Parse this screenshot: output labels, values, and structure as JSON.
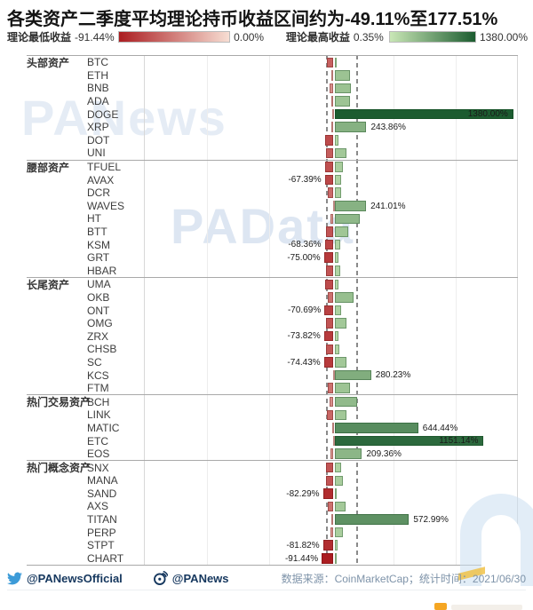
{
  "title": "各类资产二季度平均理论持币收益区间约为-49.11%至177.51%",
  "legend": {
    "min": {
      "label": "理论最低收益",
      "from": "-91.44%",
      "to": "0.00%"
    },
    "max": {
      "label": "理论最高收益",
      "from": "0.35%",
      "to": "1380.00%"
    }
  },
  "colors": {
    "red_dark": "#ab1d21",
    "red_light": "#f7ded3",
    "green_light": "#c9e7b6",
    "green_dark": "#1c5c30",
    "dash_gray": "#8a8a8a",
    "navy": "#15375e",
    "twitter_blue": "#3c9bd8",
    "source_gray": "#7e93a9"
  },
  "watermarks": {
    "wm1": "PANews",
    "wm2": "PAData"
  },
  "footer": {
    "twitter_handle": "@PANewsOfficial",
    "weibo_handle": "@PANews",
    "source": "数据来源：CoinMarketCap；统计时间：2021/06/30"
  },
  "chart_data": {
    "type": "bar",
    "orientation": "horizontal-diverging",
    "value_unit": "percent",
    "xlim": [
      -100,
      1400
    ],
    "grid": true,
    "avg_range_lines": {
      "min": -49.11,
      "max": 177.51
    },
    "legend_scale": {
      "red_min": -91.44,
      "red_max": 0.0,
      "green_min": 0.35,
      "green_max": 1380.0
    },
    "sections": [
      {
        "category": "头部资产",
        "assets": [
          {
            "name": "BTC",
            "min": -53,
            "max": 10
          },
          {
            "name": "ETH",
            "min": -15,
            "max": 120
          },
          {
            "name": "BNB",
            "min": -30,
            "max": 125
          },
          {
            "name": "ADA",
            "min": -20,
            "max": 115
          },
          {
            "name": "DOGE",
            "min": -10,
            "max": 1380.0,
            "max_label": "1380.00%",
            "label_inside": true
          },
          {
            "name": "XRP",
            "min": -15,
            "max": 243.86,
            "max_label": "243.86%"
          },
          {
            "name": "DOT",
            "min": -65,
            "max": 25
          },
          {
            "name": "UNI",
            "min": -55,
            "max": 90
          }
        ]
      },
      {
        "category": "腰部资产",
        "assets": [
          {
            "name": "TFUEL",
            "min": -63,
            "max": 65
          },
          {
            "name": "AVAX",
            "min": -67.39,
            "max": 45,
            "min_label": "-67.39%"
          },
          {
            "name": "DCR",
            "min": -48,
            "max": 50
          },
          {
            "name": "WAVES",
            "min": -5,
            "max": 241.01,
            "max_label": "241.01%"
          },
          {
            "name": "HT",
            "min": -25,
            "max": 190
          },
          {
            "name": "BTT",
            "min": -60,
            "max": 100
          },
          {
            "name": "KSM",
            "min": -68.36,
            "max": 40,
            "min_label": "-68.36%"
          },
          {
            "name": "GRT",
            "min": -75.0,
            "max": 30,
            "min_label": "-75.00%"
          },
          {
            "name": "HBAR",
            "min": -60,
            "max": 40
          }
        ]
      },
      {
        "category": "长尾资产",
        "assets": [
          {
            "name": "UMA",
            "min": -65,
            "max": 25
          },
          {
            "name": "OKB",
            "min": -45,
            "max": 145
          },
          {
            "name": "ONT",
            "min": -70.69,
            "max": 50,
            "min_label": "-70.69%"
          },
          {
            "name": "OMG",
            "min": -60,
            "max": 90
          },
          {
            "name": "ZRX",
            "min": -73.82,
            "max": 25,
            "min_label": "-73.82%"
          },
          {
            "name": "CHSB",
            "min": -58,
            "max": 35
          },
          {
            "name": "SC",
            "min": -74.43,
            "max": 90,
            "min_label": "-74.43%"
          },
          {
            "name": "KCS",
            "min": -5,
            "max": 280.23,
            "max_label": "280.23%"
          },
          {
            "name": "FTM",
            "min": -45,
            "max": 115
          }
        ]
      },
      {
        "category": "热门交易资产",
        "assets": [
          {
            "name": "BCH",
            "min": -30,
            "max": 175
          },
          {
            "name": "LINK",
            "min": -50,
            "max": 90
          },
          {
            "name": "MATIC",
            "min": -13,
            "max": 644.44,
            "max_label": "644.44%"
          },
          {
            "name": "ETC",
            "min": -5,
            "max": 1151.14,
            "max_label": "1151.14%",
            "label_inside": true
          },
          {
            "name": "EOS",
            "min": -25,
            "max": 209.36,
            "max_label": "209.36%"
          }
        ]
      },
      {
        "category": "热门概念资产",
        "assets": [
          {
            "name": "SNX",
            "min": -60,
            "max": 50
          },
          {
            "name": "MANA",
            "min": -60,
            "max": 65
          },
          {
            "name": "SAND",
            "min": -82.29,
            "max": 10,
            "min_label": "-82.29%"
          },
          {
            "name": "AXS",
            "min": -45,
            "max": 85
          },
          {
            "name": "TITAN",
            "min": -15,
            "max": 572.99,
            "max_label": "572.99%"
          },
          {
            "name": "PERP",
            "min": -25,
            "max": 60
          },
          {
            "name": "STPT",
            "min": -81.82,
            "max": 20,
            "min_label": "-81.82%"
          },
          {
            "name": "CHART",
            "min": -91.44,
            "max": 10,
            "min_label": "-91.44%"
          }
        ]
      }
    ]
  }
}
